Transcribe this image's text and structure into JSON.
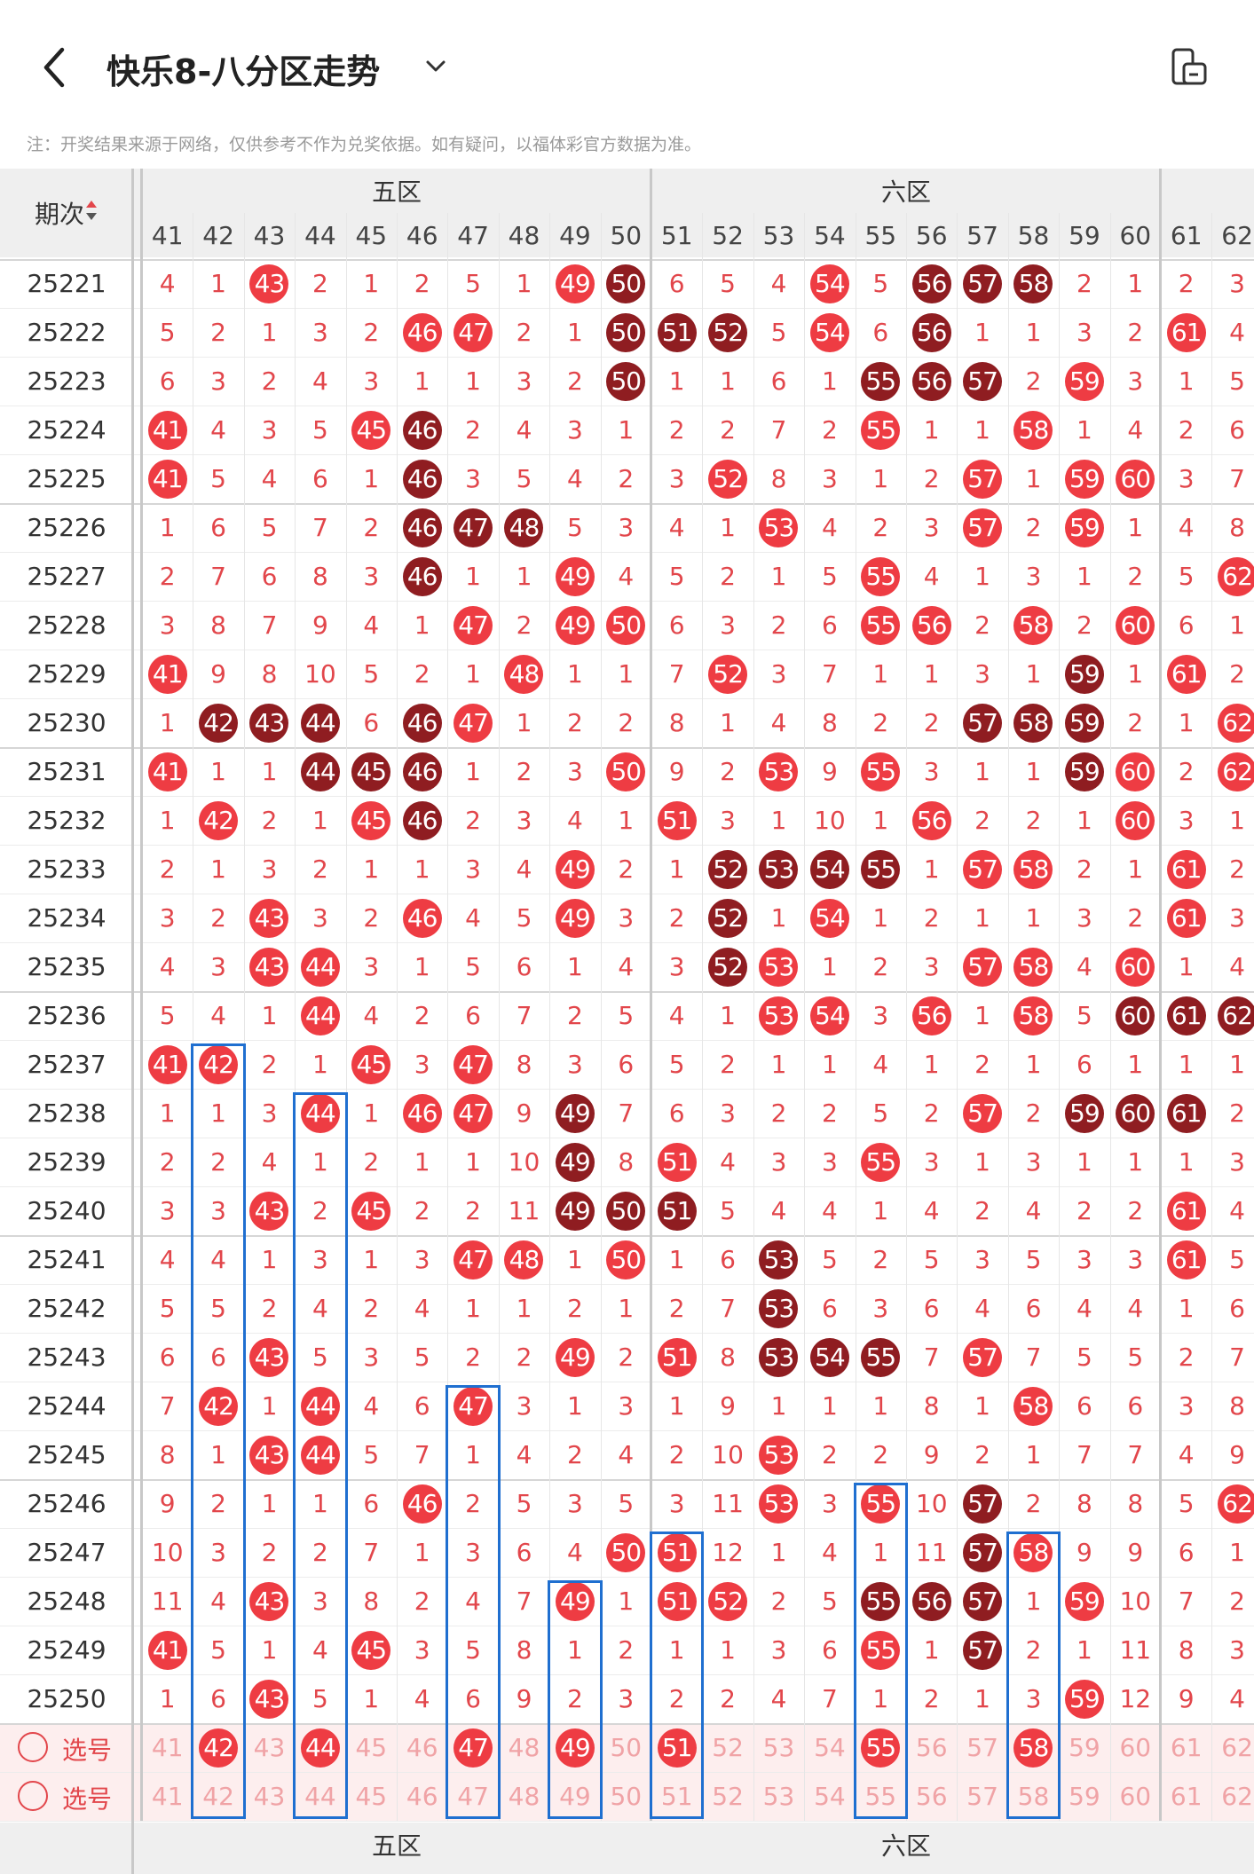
{
  "header": {
    "title": "快乐8-八分区走势",
    "note": "注：开奖结果来源于网络，仅供参考不作为兑奖依据。如有疑问，以福体彩官方数据为准。"
  },
  "table": {
    "corner_label": "期次",
    "zones": [
      {
        "label": "五区",
        "from": 41,
        "to": 50
      },
      {
        "label": "六区",
        "from": 51,
        "to": 60
      }
    ],
    "columns": [
      41,
      42,
      43,
      44,
      45,
      46,
      47,
      48,
      49,
      50,
      51,
      52,
      53,
      54,
      55,
      56,
      57,
      58,
      59,
      60,
      61,
      62
    ],
    "rows": [
      {
        "issue": "25221",
        "v": [
          4,
          1,
          "R43",
          2,
          1,
          2,
          5,
          1,
          "R49",
          "D50",
          6,
          5,
          4,
          "R54",
          5,
          "D56",
          "D57",
          "D58",
          2,
          1,
          2,
          3
        ]
      },
      {
        "issue": "25222",
        "v": [
          5,
          2,
          1,
          3,
          2,
          "R46",
          "R47",
          2,
          1,
          "D50",
          "D51",
          "D52",
          5,
          "R54",
          6,
          "D56",
          1,
          1,
          3,
          2,
          "R61",
          4
        ]
      },
      {
        "issue": "25223",
        "v": [
          6,
          3,
          2,
          4,
          3,
          1,
          1,
          3,
          2,
          "D50",
          1,
          1,
          6,
          1,
          "D55",
          "D56",
          "D57",
          2,
          "R59",
          3,
          1,
          5
        ]
      },
      {
        "issue": "25224",
        "v": [
          "R41",
          4,
          3,
          5,
          "R45",
          "D46",
          2,
          4,
          3,
          1,
          2,
          2,
          7,
          2,
          "R55",
          1,
          1,
          "R58",
          1,
          4,
          2,
          6
        ]
      },
      {
        "issue": "25225",
        "v": [
          "R41",
          5,
          4,
          6,
          1,
          "D46",
          3,
          5,
          4,
          2,
          3,
          "R52",
          8,
          3,
          1,
          2,
          "R57",
          1,
          "R59",
          "R60",
          3,
          7
        ]
      },
      {
        "issue": "25226",
        "v": [
          1,
          6,
          5,
          7,
          2,
          "D46",
          "D47",
          "D48",
          5,
          3,
          4,
          1,
          "R53",
          4,
          2,
          3,
          "R57",
          2,
          "R59",
          1,
          4,
          8
        ]
      },
      {
        "issue": "25227",
        "v": [
          2,
          7,
          6,
          8,
          3,
          "D46",
          1,
          1,
          "R49",
          4,
          5,
          2,
          1,
          5,
          "R55",
          4,
          1,
          3,
          1,
          2,
          5,
          "R62"
        ]
      },
      {
        "issue": "25228",
        "v": [
          3,
          8,
          7,
          9,
          4,
          1,
          "R47",
          2,
          "R49",
          "R50",
          6,
          3,
          2,
          6,
          "R55",
          "R56",
          2,
          "R58",
          2,
          "R60",
          6,
          1
        ]
      },
      {
        "issue": "25229",
        "v": [
          "R41",
          9,
          8,
          10,
          5,
          2,
          1,
          "R48",
          1,
          1,
          7,
          "R52",
          3,
          7,
          1,
          1,
          3,
          1,
          "D59",
          1,
          "R61",
          2
        ]
      },
      {
        "issue": "25230",
        "v": [
          1,
          "D42",
          "D43",
          "D44",
          6,
          "D46",
          "R47",
          1,
          2,
          2,
          8,
          1,
          4,
          8,
          2,
          2,
          "D57",
          "D58",
          "D59",
          2,
          1,
          "R62"
        ]
      },
      {
        "issue": "25231",
        "v": [
          "R41",
          1,
          1,
          "D44",
          "D45",
          "D46",
          1,
          2,
          3,
          "R50",
          9,
          2,
          "R53",
          9,
          "R55",
          3,
          1,
          1,
          "D59",
          "R60",
          2,
          "R62"
        ]
      },
      {
        "issue": "25232",
        "v": [
          1,
          "R42",
          2,
          1,
          "R45",
          "D46",
          2,
          3,
          4,
          1,
          "R51",
          3,
          1,
          10,
          1,
          "R56",
          2,
          2,
          1,
          "R60",
          3,
          1
        ]
      },
      {
        "issue": "25233",
        "v": [
          2,
          1,
          3,
          2,
          1,
          1,
          3,
          4,
          "R49",
          2,
          1,
          "D52",
          "D53",
          "D54",
          "D55",
          1,
          "R57",
          "R58",
          2,
          1,
          "R61",
          2
        ]
      },
      {
        "issue": "25234",
        "v": [
          3,
          2,
          "R43",
          3,
          2,
          "R46",
          4,
          5,
          "R49",
          3,
          2,
          "D52",
          1,
          "R54",
          1,
          2,
          1,
          1,
          3,
          2,
          "R61",
          3
        ]
      },
      {
        "issue": "25235",
        "v": [
          4,
          3,
          "R43",
          "R44",
          3,
          1,
          5,
          6,
          1,
          4,
          3,
          "D52",
          "R53",
          1,
          2,
          3,
          "R57",
          "R58",
          4,
          "R60",
          1,
          4
        ]
      },
      {
        "issue": "25236",
        "v": [
          5,
          4,
          1,
          "R44",
          4,
          2,
          6,
          7,
          2,
          5,
          4,
          1,
          "R53",
          "R54",
          3,
          "R56",
          1,
          "R58",
          5,
          "D60",
          "D61",
          "D62"
        ]
      },
      {
        "issue": "25237",
        "v": [
          "R41",
          "R42",
          2,
          1,
          "R45",
          3,
          "R47",
          8,
          3,
          6,
          5,
          2,
          1,
          1,
          4,
          1,
          2,
          1,
          6,
          1,
          1,
          1
        ]
      },
      {
        "issue": "25238",
        "v": [
          1,
          1,
          3,
          "R44",
          1,
          "R46",
          "R47",
          9,
          "D49",
          7,
          6,
          3,
          2,
          2,
          5,
          2,
          "R57",
          2,
          "D59",
          "D60",
          "D61",
          2
        ]
      },
      {
        "issue": "25239",
        "v": [
          2,
          2,
          4,
          1,
          2,
          1,
          1,
          10,
          "D49",
          8,
          "R51",
          4,
          3,
          3,
          "R55",
          3,
          1,
          3,
          1,
          1,
          1,
          3
        ]
      },
      {
        "issue": "25240",
        "v": [
          3,
          3,
          "R43",
          2,
          "R45",
          2,
          2,
          11,
          "D49",
          "D50",
          "D51",
          5,
          4,
          4,
          1,
          4,
          2,
          4,
          2,
          2,
          "R61",
          4
        ]
      },
      {
        "issue": "25241",
        "v": [
          4,
          4,
          1,
          3,
          1,
          3,
          "R47",
          "R48",
          1,
          "R50",
          1,
          6,
          "D53",
          5,
          2,
          5,
          3,
          5,
          3,
          3,
          "R61",
          5
        ]
      },
      {
        "issue": "25242",
        "v": [
          5,
          5,
          2,
          4,
          2,
          4,
          1,
          1,
          2,
          1,
          2,
          7,
          "D53",
          6,
          3,
          6,
          4,
          6,
          4,
          4,
          1,
          6
        ]
      },
      {
        "issue": "25243",
        "v": [
          6,
          6,
          "R43",
          5,
          3,
          5,
          2,
          2,
          "R49",
          2,
          "R51",
          8,
          "D53",
          "D54",
          "D55",
          7,
          "R57",
          7,
          5,
          5,
          2,
          7
        ]
      },
      {
        "issue": "25244",
        "v": [
          7,
          "R42",
          1,
          "R44",
          4,
          6,
          "R47",
          3,
          1,
          3,
          1,
          9,
          1,
          1,
          1,
          8,
          1,
          "R58",
          6,
          6,
          3,
          8
        ]
      },
      {
        "issue": "25245",
        "v": [
          8,
          1,
          "R43",
          "R44",
          5,
          7,
          1,
          4,
          2,
          4,
          2,
          10,
          "R53",
          2,
          2,
          9,
          2,
          1,
          7,
          7,
          4,
          9
        ]
      },
      {
        "issue": "25246",
        "v": [
          9,
          2,
          1,
          1,
          6,
          "R46",
          2,
          5,
          3,
          5,
          3,
          11,
          "R53",
          3,
          "R55",
          10,
          "D57",
          2,
          8,
          8,
          5,
          "R62"
        ]
      },
      {
        "issue": "25247",
        "v": [
          10,
          3,
          2,
          2,
          7,
          1,
          3,
          6,
          4,
          "R50",
          "R51",
          12,
          1,
          4,
          1,
          11,
          "D57",
          "R58",
          9,
          9,
          6,
          1
        ]
      },
      {
        "issue": "25248",
        "v": [
          11,
          4,
          "R43",
          3,
          8,
          2,
          4,
          7,
          "R49",
          1,
          "R51",
          "R52",
          2,
          5,
          "D55",
          "D56",
          "D57",
          1,
          "R59",
          10,
          7,
          2
        ]
      },
      {
        "issue": "25249",
        "v": [
          "R41",
          5,
          1,
          4,
          "R45",
          3,
          5,
          8,
          1,
          2,
          1,
          1,
          3,
          6,
          "R55",
          1,
          "D57",
          2,
          1,
          11,
          8,
          3
        ]
      },
      {
        "issue": "25250",
        "v": [
          1,
          6,
          "R43",
          5,
          1,
          4,
          6,
          9,
          2,
          3,
          2,
          2,
          4,
          7,
          1,
          2,
          1,
          3,
          "R59",
          12,
          9,
          4
        ]
      }
    ],
    "select_rows": [
      {
        "label": "选号",
        "selected": [
          42,
          44,
          47,
          49,
          51,
          55,
          58
        ]
      },
      {
        "label": "选号",
        "selected": []
      }
    ],
    "highlight_boxes": [
      {
        "col": 42,
        "from_row": 16,
        "to_row": 31
      },
      {
        "col": 44,
        "from_row": 17,
        "to_row": 31
      },
      {
        "col": 47,
        "from_row": 23,
        "to_row": 31
      },
      {
        "col": 49,
        "from_row": 27,
        "to_row": 31
      },
      {
        "col": 51,
        "from_row": 26,
        "to_row": 31
      },
      {
        "col": 55,
        "from_row": 25,
        "to_row": 31
      },
      {
        "col": 58,
        "from_row": 26,
        "to_row": 31
      }
    ],
    "footer_zones": [
      "五区",
      "六区"
    ]
  },
  "colors": {
    "ball_red": "#ee3c43",
    "ball_dark": "#8f1d21",
    "text_red": "#e2464b",
    "box_blue": "#1f6fd0",
    "select_bg": "#fdeeee"
  }
}
